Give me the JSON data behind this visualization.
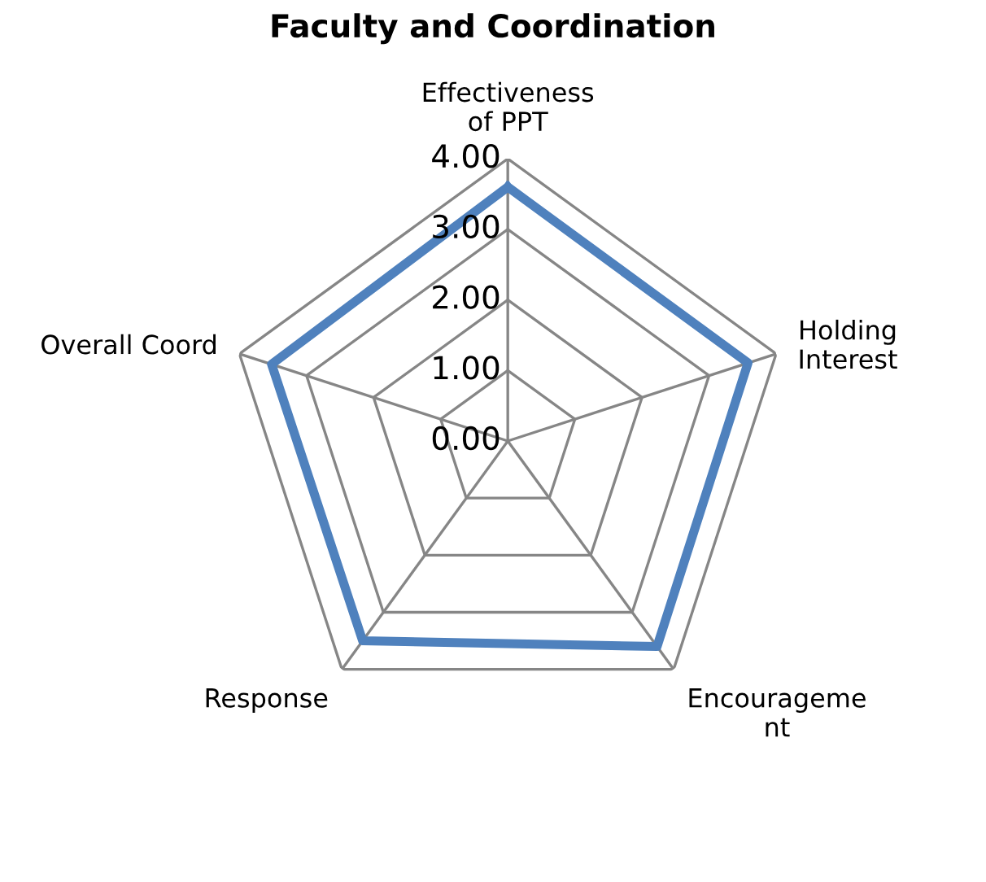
{
  "chart_data": {
    "type": "radar",
    "title": "Faculty and Coordination",
    "categories": [
      "Effectiveness\nof PPT",
      "Holding\nInterest",
      "Encourageme\nnt",
      "Response",
      "Overall Coord"
    ],
    "series": [
      {
        "color": "#4f81bd",
        "values": [
          3.6,
          3.58,
          3.6,
          3.5,
          3.52
        ]
      }
    ],
    "ylim": [
      0,
      4
    ],
    "yticks": [
      {
        "value": 0,
        "label": "0.00"
      },
      {
        "value": 1,
        "label": "1.00"
      },
      {
        "value": 2,
        "label": "2.00"
      },
      {
        "value": 3,
        "label": "3.00"
      },
      {
        "value": 4,
        "label": "4.00"
      }
    ],
    "grid": true
  }
}
